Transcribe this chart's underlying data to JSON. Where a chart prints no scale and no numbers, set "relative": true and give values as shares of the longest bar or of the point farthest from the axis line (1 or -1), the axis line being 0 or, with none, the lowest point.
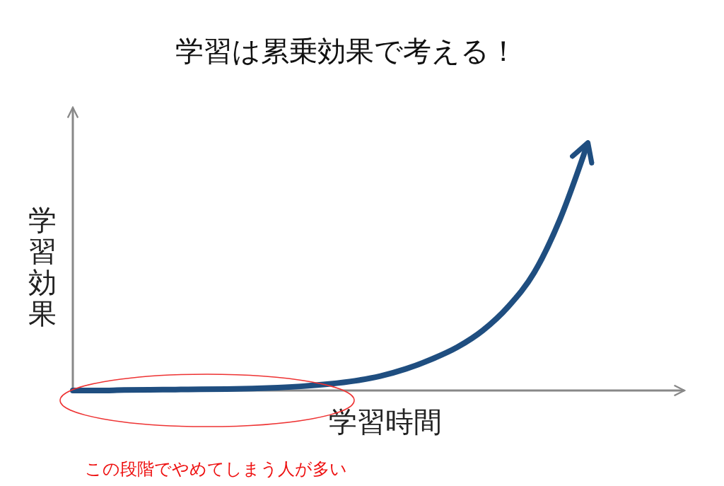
{
  "chart_data": {
    "type": "line",
    "title": "学習は累乗効果で考える！",
    "xlabel": "学習時間",
    "ylabel": "学習効果",
    "relative": true,
    "annotations": [
      "この段階でやめてしまう人が多い"
    ],
    "categories": [
      null,
      null,
      null,
      null,
      null,
      null,
      null,
      null,
      null,
      null,
      null,
      null,
      null,
      null,
      null,
      null,
      null,
      null,
      null,
      null,
      null
    ],
    "series": [
      {
        "color": "#1f4e80",
        "values": [
          0,
          0,
          0.002,
          0.003,
          0.004,
          0.005,
          0.006,
          0.008,
          0.012,
          0.018,
          0.027,
          0.04,
          0.06,
          0.09,
          0.13,
          0.18,
          0.25,
          0.35,
          0.49,
          0.71,
          1.0
        ]
      }
    ]
  }
}
